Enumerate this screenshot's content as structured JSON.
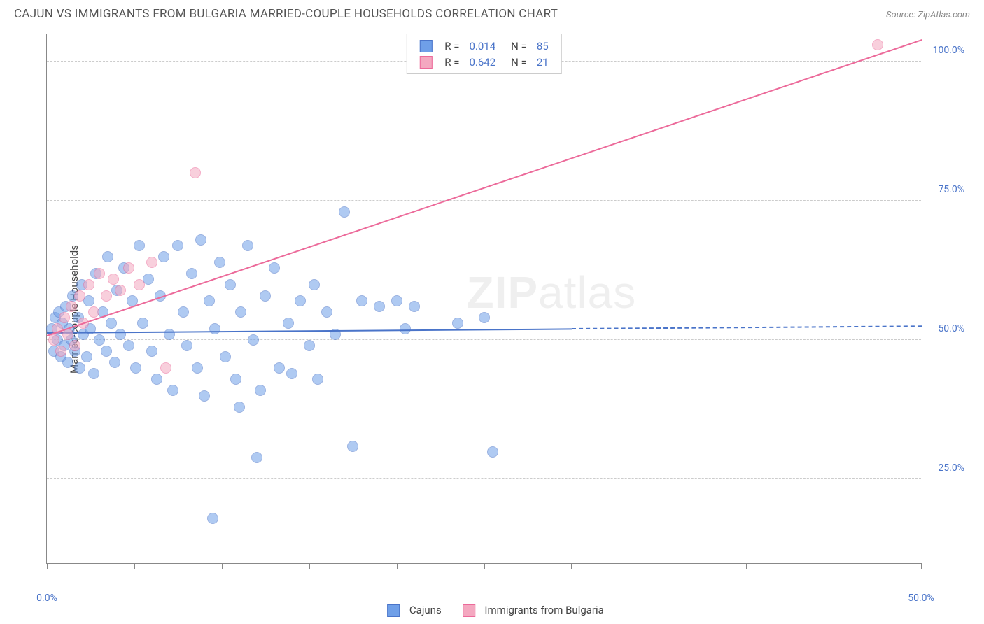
{
  "title": "CAJUN VS IMMIGRANTS FROM BULGARIA MARRIED-COUPLE HOUSEHOLDS CORRELATION CHART",
  "source": "Source: ZipAtlas.com",
  "ylabel": "Married-couple Households",
  "watermark_bold": "ZIP",
  "watermark_rest": "atlas",
  "chart": {
    "type": "scatter",
    "xlim": [
      0,
      50
    ],
    "ylim": [
      10,
      105
    ],
    "xtick_positions": [
      0,
      5,
      10,
      15,
      20,
      25,
      30,
      35,
      40,
      45,
      50
    ],
    "xtick_labels": {
      "0": "0.0%",
      "50": "50.0%"
    },
    "ytick_positions": [
      25,
      50,
      75,
      100
    ],
    "ytick_labels": {
      "25": "25.0%",
      "50": "50.0%",
      "75": "75.0%",
      "100": "100.0%"
    },
    "background_color": "#ffffff",
    "grid_color": "#cccccc",
    "axis_color": "#888888",
    "tick_label_color": "#4a74c9",
    "marker_radius": 8,
    "marker_opacity": 0.55,
    "series": [
      {
        "name": "Cajuns",
        "color": "#6f9fe8",
        "stroke": "#4a74c9",
        "R": "0.014",
        "N": "85",
        "trend": {
          "x1": 0,
          "y1": 51.5,
          "x2": 30,
          "y2": 52.2,
          "dash_to_x": 50
        },
        "points": [
          [
            0.3,
            52
          ],
          [
            0.4,
            48
          ],
          [
            0.5,
            54
          ],
          [
            0.6,
            50
          ],
          [
            0.7,
            55
          ],
          [
            0.8,
            47
          ],
          [
            0.9,
            53
          ],
          [
            1.0,
            49
          ],
          [
            1.1,
            56
          ],
          [
            1.2,
            46
          ],
          [
            1.3,
            52
          ],
          [
            1.4,
            50
          ],
          [
            1.5,
            58
          ],
          [
            1.6,
            48
          ],
          [
            1.8,
            54
          ],
          [
            1.9,
            45
          ],
          [
            2.0,
            60
          ],
          [
            2.1,
            51
          ],
          [
            2.3,
            47
          ],
          [
            2.4,
            57
          ],
          [
            2.5,
            52
          ],
          [
            2.7,
            44
          ],
          [
            2.8,
            62
          ],
          [
            3.0,
            50
          ],
          [
            3.2,
            55
          ],
          [
            3.4,
            48
          ],
          [
            3.5,
            65
          ],
          [
            3.7,
            53
          ],
          [
            3.9,
            46
          ],
          [
            4.0,
            59
          ],
          [
            4.2,
            51
          ],
          [
            4.4,
            63
          ],
          [
            4.7,
            49
          ],
          [
            4.9,
            57
          ],
          [
            5.1,
            45
          ],
          [
            5.3,
            67
          ],
          [
            5.5,
            53
          ],
          [
            5.8,
            61
          ],
          [
            6.0,
            48
          ],
          [
            6.3,
            43
          ],
          [
            6.5,
            58
          ],
          [
            6.7,
            65
          ],
          [
            7.0,
            51
          ],
          [
            7.2,
            41
          ],
          [
            7.5,
            67
          ],
          [
            7.8,
            55
          ],
          [
            8.0,
            49
          ],
          [
            8.3,
            62
          ],
          [
            8.6,
            45
          ],
          [
            8.8,
            68
          ],
          [
            9.0,
            40
          ],
          [
            9.3,
            57
          ],
          [
            9.6,
            52
          ],
          [
            9.9,
            64
          ],
          [
            10.2,
            47
          ],
          [
            10.5,
            60
          ],
          [
            10.8,
            43
          ],
          [
            11.1,
            55
          ],
          [
            11.5,
            67
          ],
          [
            11.8,
            50
          ],
          [
            12.2,
            41
          ],
          [
            12.5,
            58
          ],
          [
            13.0,
            63
          ],
          [
            13.3,
            45
          ],
          [
            13.8,
            53
          ],
          [
            14.0,
            44
          ],
          [
            14.5,
            57
          ],
          [
            15.0,
            49
          ],
          [
            15.3,
            60
          ],
          [
            15.5,
            43
          ],
          [
            16.0,
            55
          ],
          [
            16.5,
            51
          ],
          [
            17.0,
            73
          ],
          [
            17.5,
            31
          ],
          [
            18.0,
            57
          ],
          [
            19.0,
            56
          ],
          [
            20.0,
            57
          ],
          [
            20.5,
            52
          ],
          [
            21.0,
            56
          ],
          [
            23.5,
            53
          ],
          [
            25.0,
            54
          ],
          [
            25.5,
            30
          ],
          [
            9.5,
            18
          ],
          [
            12.0,
            29
          ],
          [
            11.0,
            38
          ]
        ]
      },
      {
        "name": "Immigrants from Bulgaria",
        "color": "#f4a8c0",
        "stroke": "#ec6a9a",
        "R": "0.642",
        "N": "21",
        "trend": {
          "x1": 0,
          "y1": 51,
          "x2": 50,
          "y2": 104
        },
        "points": [
          [
            0.4,
            50
          ],
          [
            0.6,
            52
          ],
          [
            0.8,
            48
          ],
          [
            1.0,
            54
          ],
          [
            1.2,
            51
          ],
          [
            1.4,
            56
          ],
          [
            1.6,
            49
          ],
          [
            1.9,
            58
          ],
          [
            2.1,
            53
          ],
          [
            2.4,
            60
          ],
          [
            2.7,
            55
          ],
          [
            3.0,
            62
          ],
          [
            3.4,
            58
          ],
          [
            3.8,
            61
          ],
          [
            4.2,
            59
          ],
          [
            4.7,
            63
          ],
          [
            5.3,
            60
          ],
          [
            6.0,
            64
          ],
          [
            6.8,
            45
          ],
          [
            8.5,
            80
          ],
          [
            47.5,
            103
          ]
        ]
      }
    ]
  },
  "legend_bottom": [
    "Cajuns",
    "Immigrants from Bulgaria"
  ]
}
